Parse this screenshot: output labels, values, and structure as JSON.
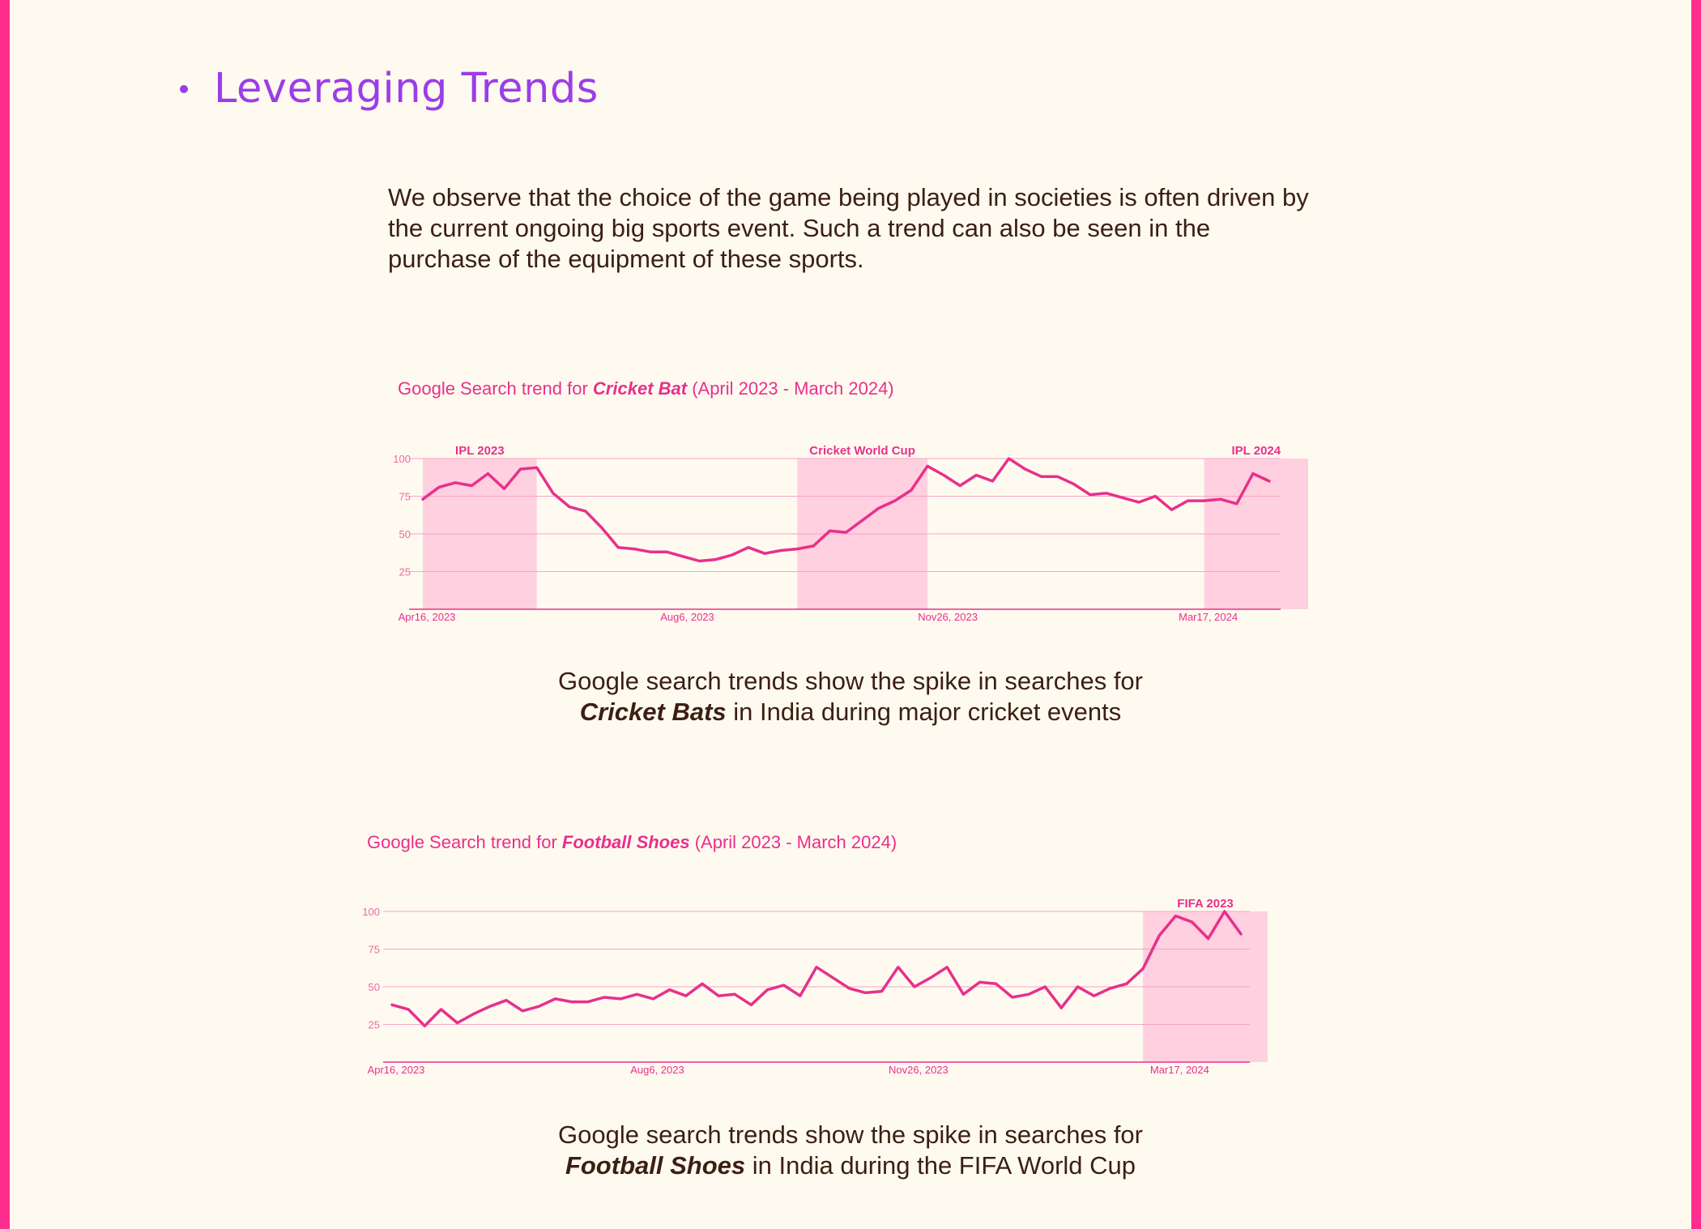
{
  "heading": "Leveraging Trends",
  "intro": "We observe  that the choice of the game being played in societies is often driven by the current ongoing big sports event. Such a trend can also be seen in the purchase of the equipment of these sports.",
  "chart_data": [
    {
      "type": "line",
      "title_prefix": "Google Search trend for ",
      "title_emph": "Cricket Bat",
      "title_suffix": " (April 2023 - March 2024)",
      "ylim": [
        0,
        100
      ],
      "yticks": [
        25,
        50,
        75,
        100
      ],
      "x_ticks": [
        "Apr16, 2023",
        "Aug6, 2023",
        "Nov26, 2023",
        "Mar17, 2024"
      ],
      "x_tick_indices": [
        0,
        16,
        32,
        48
      ],
      "highlights": [
        {
          "label": "IPL 2023",
          "from": 0,
          "to": 7
        },
        {
          "label": "Cricket World Cup",
          "from": 23,
          "to": 31
        },
        {
          "label": "IPL 2024",
          "from": 48,
          "to": 53
        }
      ],
      "series": [
        {
          "values": [
            73,
            81,
            84,
            82,
            90,
            80,
            93,
            94,
            77,
            68,
            65,
            54,
            41,
            40,
            38,
            38,
            35,
            32,
            33,
            36,
            41,
            37,
            39,
            40,
            42,
            52,
            51,
            59,
            67,
            72,
            79,
            95,
            89,
            82,
            89,
            85,
            100,
            93,
            88,
            88,
            83,
            76,
            77,
            74,
            71,
            75,
            66,
            72,
            72,
            73,
            70,
            90,
            85
          ]
        }
      ],
      "grid": true
    },
    {
      "type": "line",
      "title_prefix": "Google Search trend for ",
      "title_emph": "Football Shoes",
      "title_suffix": " (April 2023 - March 2024)",
      "ylim": [
        0,
        100
      ],
      "yticks": [
        25,
        50,
        75,
        100
      ],
      "x_ticks": [
        "Apr16, 2023",
        "Aug6, 2023",
        "Nov26, 2023",
        "Mar17, 2024"
      ],
      "x_tick_indices": [
        0,
        16,
        32,
        48
      ],
      "highlights": [
        {
          "label": "FIFA 2023",
          "from": 46,
          "to": 54
        }
      ],
      "series": [
        {
          "values": [
            38,
            35,
            24,
            35,
            26,
            32,
            37,
            41,
            34,
            37,
            42,
            40,
            40,
            43,
            42,
            45,
            42,
            48,
            44,
            52,
            44,
            45,
            38,
            48,
            51,
            44,
            63,
            56,
            49,
            46,
            47,
            63,
            50,
            56,
            63,
            45,
            53,
            52,
            43,
            45,
            50,
            36,
            50,
            44,
            49,
            52,
            62,
            84,
            97,
            93,
            82,
            100,
            85
          ]
        }
      ],
      "grid": true
    }
  ],
  "captions": [
    {
      "line1": "Google search trends show the spike in searches for",
      "emph": "Cricket Bats",
      "rest": " in India during major cricket events"
    },
    {
      "line1": "Google search trends show the spike in searches for",
      "emph": "Football Shoes",
      "rest": "  in India during the FIFA World Cup"
    }
  ],
  "colors": {
    "accent": "#e8308c",
    "highlight": "#ffd0df",
    "heading": "#9b3de8",
    "border": "#ff2d8e",
    "background": "#fffaf0"
  }
}
